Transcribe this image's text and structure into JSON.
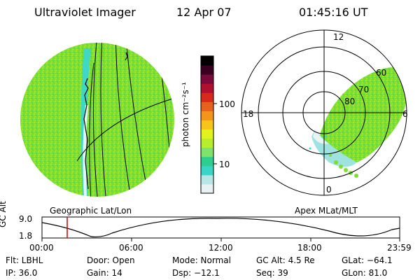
{
  "header": {
    "instrument": "Ultraviolet Imager",
    "date": "12 Apr 07",
    "time": "01:45:16 UT"
  },
  "colorbar": {
    "unit_label": "photon cm⁻²s⁻¹",
    "ticks": [
      "100",
      "10"
    ],
    "colors": [
      "#e8f2f2",
      "#b8e6e6",
      "#39d6c8",
      "#2ecf8e",
      "#7fe36b",
      "#b6ee2f",
      "#e2f21c",
      "#f7c51a",
      "#f2951a",
      "#e6611c",
      "#d82a1c",
      "#b01030",
      "#7a0a3a",
      "#3a0022",
      "#000000"
    ]
  },
  "geo_view": {
    "label": "Geographic Lat/Lon",
    "fill_color": "#79e02a"
  },
  "polar_view": {
    "label": "Apex MLat/MLT",
    "mlt_labels": {
      "top": "12",
      "left": "18",
      "right": "6",
      "bottom": "0"
    },
    "lat_labels": [
      "60",
      "70",
      "80"
    ]
  },
  "timeline": {
    "axis_label": "GC Alt",
    "y_ticks": [
      "9.0",
      "1.8"
    ],
    "x_ticks": [
      "00:00",
      "06:00",
      "12:00",
      "18:00",
      "23:59"
    ],
    "current_time_color": "#cc0000"
  },
  "status": {
    "row1": {
      "flt": "Flt: LBHL",
      "door": "Door: Open",
      "mode": "Mode: Normal",
      "gc_alt": "GC Alt: 4.5 Re",
      "glat": "GLat: −64.1"
    },
    "row2": {
      "ip": "IP: 36.0",
      "gain": "Gain: 14",
      "dsp": "Dsp: −12.1",
      "seq": "Seq: 39",
      "glon": "GLon: 81.0"
    }
  }
}
